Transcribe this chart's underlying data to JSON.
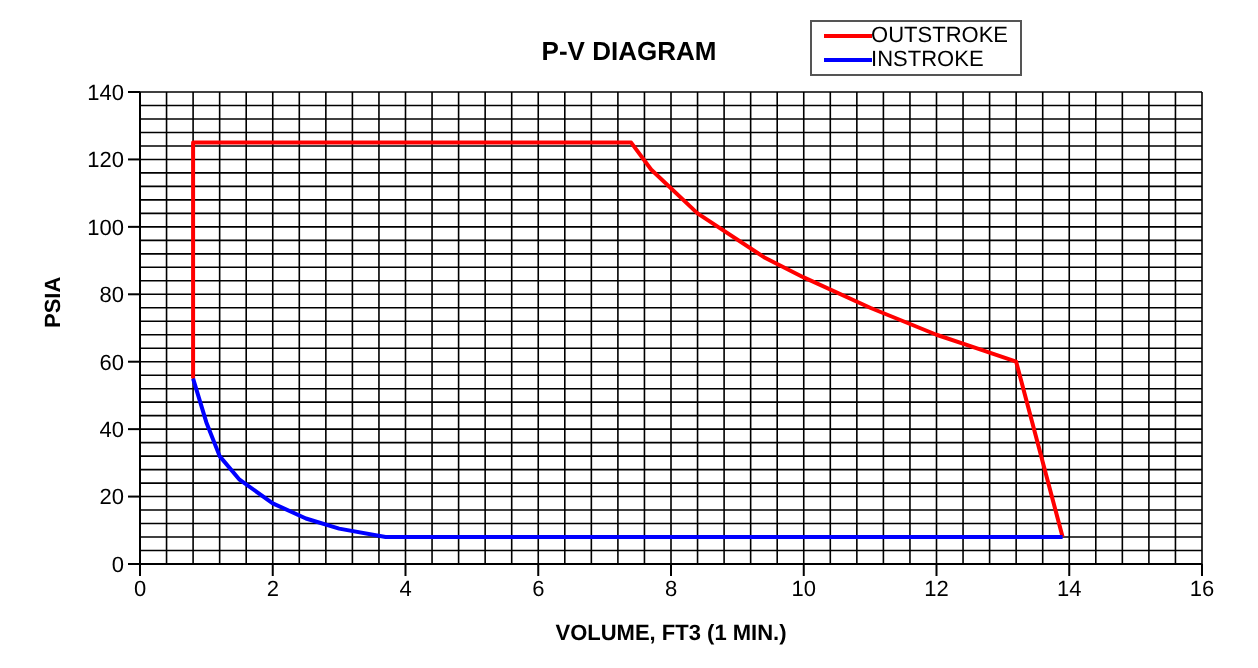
{
  "chart_data": {
    "type": "line",
    "title": "P-V DIAGRAM",
    "xlabel": "VOLUME, FT3 (1 MIN.)",
    "ylabel": "PSIA",
    "xlim": [
      0,
      16
    ],
    "xticks": [
      0,
      2,
      4,
      6,
      8,
      10,
      12,
      14,
      16
    ],
    "ylim": [
      0,
      140
    ],
    "yticks": [
      0,
      20,
      40,
      60,
      80,
      100,
      120,
      140
    ],
    "grid": true,
    "legend": "top right",
    "marker": "none",
    "line_style": "solid",
    "series": [
      {
        "name": "OUTSTROKE",
        "color": "#ff0000",
        "x": [
          0.8,
          0.8,
          7.4,
          7.7,
          8.4,
          9.4,
          10,
          11,
          12,
          12.6,
          13.2,
          13.9
        ],
        "values": [
          55,
          125,
          125,
          117,
          104,
          91,
          85,
          76,
          68,
          64,
          60,
          8
        ]
      },
      {
        "name": "INSTROKE",
        "color": "#0000ff",
        "x": [
          0.8,
          1,
          1.2,
          1.5,
          2,
          2.5,
          3,
          3.7,
          13.9
        ],
        "values": [
          55,
          42,
          32,
          25,
          18,
          13.5,
          10.5,
          8,
          8
        ]
      }
    ]
  }
}
